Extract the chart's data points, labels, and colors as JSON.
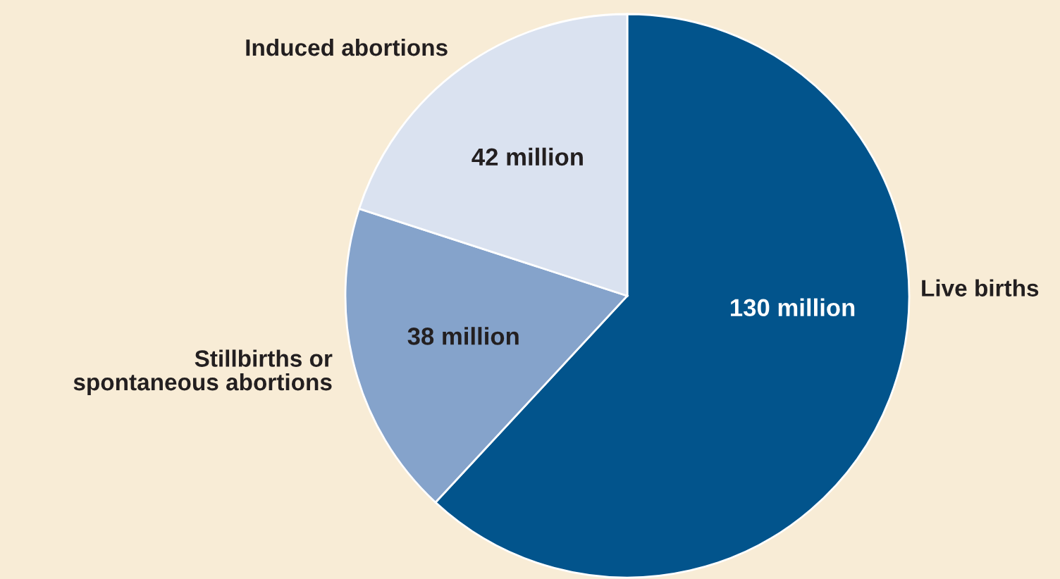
{
  "chart_data": {
    "type": "pie",
    "categories": [
      "Live births",
      "Stillbirths or\nspontaneous abortions",
      "Induced abortions"
    ],
    "values": [
      130,
      38,
      42
    ],
    "colors": [
      "#02548c",
      "#85a3cb",
      "#dae2f0"
    ],
    "value_labels": [
      "130 million",
      "38 million",
      "42 million"
    ]
  }
}
